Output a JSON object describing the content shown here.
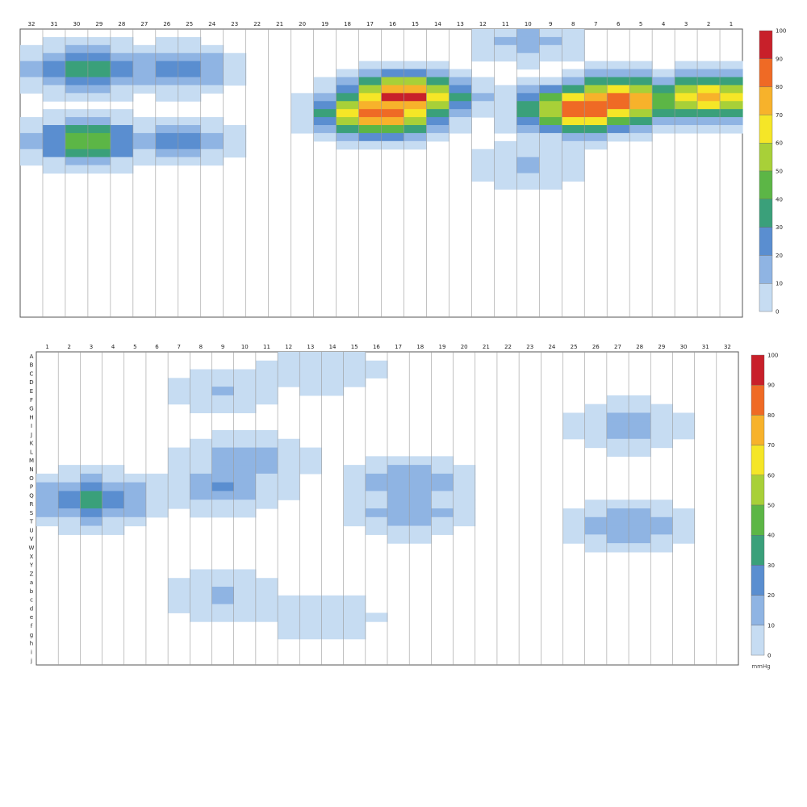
{
  "chart_data": [
    {
      "type": "heatmap",
      "name": "",
      "x_tick_labels": [
        "32",
        "31",
        "30",
        "29",
        "28",
        "27",
        "26",
        "25",
        "24",
        "23",
        "22",
        "21",
        "20",
        "19",
        "18",
        "17",
        "16",
        "15",
        "14",
        "13",
        "12",
        "11",
        "10",
        "9",
        "8",
        "7",
        "6",
        "5",
        "4",
        "3",
        "2",
        "1"
      ],
      "row_labels": [],
      "color_scale": {
        "min": 0,
        "max": 100,
        "ticks": [
          "100",
          "90",
          "80",
          "70",
          "60",
          "50",
          "40",
          "30",
          "20",
          "10",
          "0"
        ],
        "colors": [
          "#ffffff",
          "#c6dcf2",
          "#8fb4e3",
          "#5a8ed0",
          "#3aa07a",
          "#5cb646",
          "#a8d038",
          "#f5e627",
          "#f7b22b",
          "#ef6a25",
          "#c8202a"
        ]
      },
      "unit": "",
      "hotspots": [
        {
          "cx": 26.0,
          "cy": 8.5,
          "peak": 98
        },
        {
          "cx": 24.5,
          "cy": 9.5,
          "peak": 95
        },
        {
          "cx": 16.5,
          "cy": 8.0,
          "peak": 100
        },
        {
          "cx": 15.5,
          "cy": 10.0,
          "peak": 92
        },
        {
          "cx": 30.0,
          "cy": 8.0,
          "peak": 78
        },
        {
          "cx": 2.5,
          "cy": 4.5,
          "peak": 48
        },
        {
          "cx": 2.5,
          "cy": 13.5,
          "peak": 50
        },
        {
          "cx": 6.5,
          "cy": 4.5,
          "peak": 30
        },
        {
          "cx": 6.5,
          "cy": 13.5,
          "peak": 28
        },
        {
          "cx": 22.0,
          "cy": 1.0,
          "peak": 18
        },
        {
          "cx": 22.0,
          "cy": 16.5,
          "peak": 16
        }
      ]
    },
    {
      "type": "heatmap",
      "name": "",
      "x_tick_labels": [
        "1",
        "2",
        "3",
        "4",
        "5",
        "6",
        "7",
        "8",
        "9",
        "10",
        "11",
        "12",
        "13",
        "14",
        "15",
        "16",
        "17",
        "18",
        "19",
        "20",
        "21",
        "22",
        "23",
        "24",
        "25",
        "26",
        "27",
        "28",
        "29",
        "30",
        "31",
        "32"
      ],
      "row_labels": [
        "A",
        "B",
        "C",
        "D",
        "E",
        "F",
        "G",
        "H",
        "I",
        "J",
        "K",
        "L",
        "M",
        "N",
        "O",
        "P",
        "Q",
        "R",
        "S",
        "T",
        "U",
        "V",
        "W",
        "X",
        "Y",
        "Z",
        "a",
        "b",
        "c",
        "d",
        "e",
        "f",
        "g",
        "h",
        "i",
        "j"
      ],
      "color_scale": {
        "min": 0,
        "max": 100,
        "ticks": [
          "100",
          "90",
          "80",
          "70",
          "60",
          "50",
          "40",
          "30",
          "20",
          "10",
          "0"
        ],
        "colors": [
          "#ffffff",
          "#c6dcf2",
          "#8fb4e3",
          "#5a8ed0",
          "#3aa07a",
          "#5cb646",
          "#a8d038",
          "#f5e627",
          "#f7b22b",
          "#ef6a25",
          "#c8202a"
        ]
      },
      "unit": "mmHg",
      "hotspots": [
        {
          "cx": 8.0,
          "cy": 15.0,
          "peak": 26
        },
        {
          "cx": 9.0,
          "cy": 12.0,
          "peak": 24
        },
        {
          "cx": 16.5,
          "cy": 14.5,
          "peak": 25
        },
        {
          "cx": 16.5,
          "cy": 18.0,
          "peak": 22
        },
        {
          "cx": 2.0,
          "cy": 16.5,
          "peak": 38
        },
        {
          "cx": 26.5,
          "cy": 8.0,
          "peak": 20
        },
        {
          "cx": 26.5,
          "cy": 19.5,
          "peak": 22
        },
        {
          "cx": 12.5,
          "cy": 1.5,
          "peak": 14
        },
        {
          "cx": 12.5,
          "cy": 30.0,
          "peak": 14
        },
        {
          "cx": 8.0,
          "cy": 27.5,
          "peak": 18
        },
        {
          "cx": 8.0,
          "cy": 4.0,
          "peak": 15
        }
      ]
    }
  ]
}
